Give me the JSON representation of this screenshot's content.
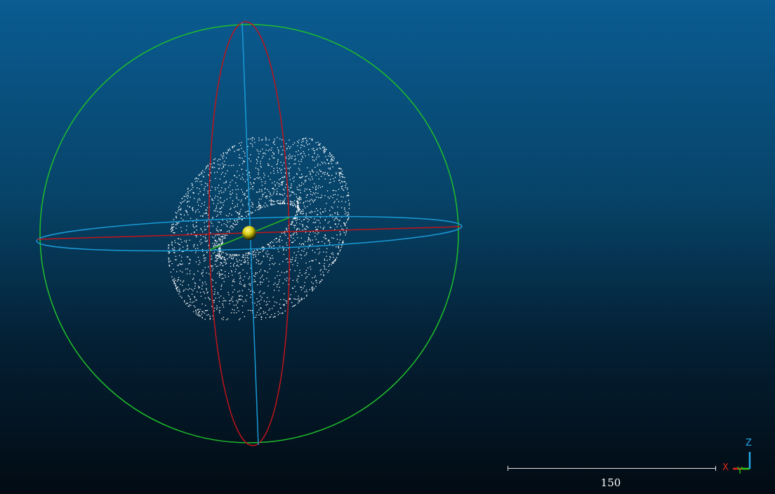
{
  "scene": {
    "background_top": "#0a5c92",
    "background_bottom": "#020b13",
    "point_color": "#ffffff",
    "sphere_color": "#1fbf2a",
    "ring_red_color": "#c0141a",
    "ring_blue_color": "#1a9ad6",
    "axis_green_color": "#29b51f",
    "center_pivot_color": "#e8e020"
  },
  "scale_bar": {
    "value_label": "150"
  },
  "axis_triad": {
    "x_label": "X",
    "y_label": "Y",
    "z_label": "Z",
    "x_color": "#e0281e",
    "y_color": "#22c91a",
    "z_color": "#22a8e6"
  }
}
